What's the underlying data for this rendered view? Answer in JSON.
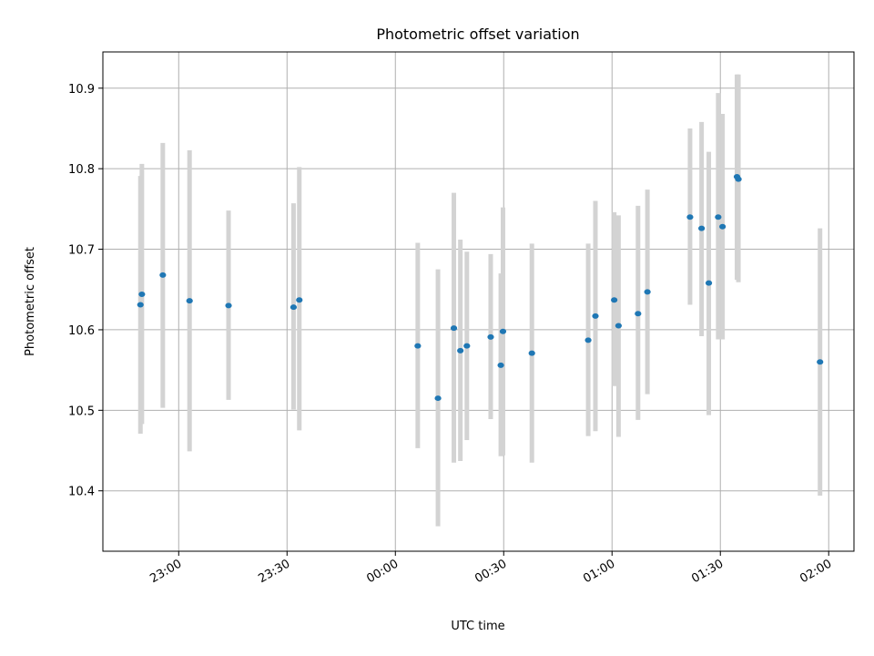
{
  "chart_data": {
    "type": "scatter",
    "title": "Photometric offset variation",
    "xlabel": "UTC time",
    "ylabel": "Photometric offset",
    "xlim": [
      "2000-01-01T22:39:00",
      "2000-01-02T02:07:00"
    ],
    "ylim": [
      10.325,
      10.945
    ],
    "grid": true,
    "x_ticks": [
      "23:00",
      "23:30",
      "00:00",
      "00:30",
      "01:00",
      "01:30",
      "02:00"
    ],
    "x_tick_times": [
      "2000-01-01T23:00:00",
      "2000-01-01T23:30:00",
      "2000-01-02T00:00:00",
      "2000-01-02T00:30:00",
      "2000-01-02T01:00:00",
      "2000-01-02T01:30:00",
      "2000-01-02T02:00:00"
    ],
    "y_ticks": [
      10.4,
      10.5,
      10.6,
      10.7,
      10.8,
      10.9
    ],
    "y_tick_labels": [
      "10.4",
      "10.5",
      "10.6",
      "10.7",
      "10.8",
      "10.9"
    ],
    "marker_color": "#1f77b4",
    "errorbar_color": "#d3d3d3",
    "series": [
      {
        "points": [
          {
            "t": "2000-01-01T22:49:24",
            "y": 10.631,
            "lo": 10.471,
            "hi": 10.791
          },
          {
            "t": "2000-01-01T22:49:48",
            "y": 10.644,
            "lo": 10.483,
            "hi": 10.806
          },
          {
            "t": "2000-01-01T22:55:36",
            "y": 10.668,
            "lo": 10.503,
            "hi": 10.832
          },
          {
            "t": "2000-01-01T23:03:00",
            "y": 10.636,
            "lo": 10.449,
            "hi": 10.823
          },
          {
            "t": "2000-01-01T23:13:48",
            "y": 10.63,
            "lo": 10.513,
            "hi": 10.748
          },
          {
            "t": "2000-01-01T23:31:48",
            "y": 10.628,
            "lo": 10.501,
            "hi": 10.757
          },
          {
            "t": "2000-01-01T23:33:24",
            "y": 10.637,
            "lo": 10.475,
            "hi": 10.802
          },
          {
            "t": "2000-01-02T00:06:12",
            "y": 10.58,
            "lo": 10.453,
            "hi": 10.708
          },
          {
            "t": "2000-01-02T00:11:48",
            "y": 10.515,
            "lo": 10.356,
            "hi": 10.675
          },
          {
            "t": "2000-01-02T00:16:12",
            "y": 10.602,
            "lo": 10.435,
            "hi": 10.77
          },
          {
            "t": "2000-01-02T00:18:00",
            "y": 10.574,
            "lo": 10.437,
            "hi": 10.712
          },
          {
            "t": "2000-01-02T00:19:48",
            "y": 10.58,
            "lo": 10.463,
            "hi": 10.697
          },
          {
            "t": "2000-01-02T00:26:24",
            "y": 10.591,
            "lo": 10.489,
            "hi": 10.694
          },
          {
            "t": "2000-01-02T00:29:12",
            "y": 10.556,
            "lo": 10.443,
            "hi": 10.67
          },
          {
            "t": "2000-01-02T00:29:48",
            "y": 10.598,
            "lo": 10.444,
            "hi": 10.752
          },
          {
            "t": "2000-01-02T00:37:48",
            "y": 10.571,
            "lo": 10.435,
            "hi": 10.707
          },
          {
            "t": "2000-01-02T00:53:24",
            "y": 10.587,
            "lo": 10.468,
            "hi": 10.707
          },
          {
            "t": "2000-01-02T00:55:24",
            "y": 10.617,
            "lo": 10.474,
            "hi": 10.76
          },
          {
            "t": "2000-01-02T01:00:36",
            "y": 10.637,
            "lo": 10.53,
            "hi": 10.746
          },
          {
            "t": "2000-01-02T01:01:48",
            "y": 10.605,
            "lo": 10.467,
            "hi": 10.742
          },
          {
            "t": "2000-01-02T01:07:12",
            "y": 10.62,
            "lo": 10.488,
            "hi": 10.754
          },
          {
            "t": "2000-01-02T01:09:48",
            "y": 10.647,
            "lo": 10.52,
            "hi": 10.774
          },
          {
            "t": "2000-01-02T01:21:36",
            "y": 10.74,
            "lo": 10.631,
            "hi": 10.85
          },
          {
            "t": "2000-01-02T01:24:48",
            "y": 10.726,
            "lo": 10.592,
            "hi": 10.858
          },
          {
            "t": "2000-01-02T01:26:48",
            "y": 10.658,
            "lo": 10.494,
            "hi": 10.821
          },
          {
            "t": "2000-01-02T01:29:24",
            "y": 10.74,
            "lo": 10.588,
            "hi": 10.894
          },
          {
            "t": "2000-01-02T01:30:36",
            "y": 10.728,
            "lo": 10.588,
            "hi": 10.868
          },
          {
            "t": "2000-01-02T01:34:36",
            "y": 10.79,
            "lo": 10.662,
            "hi": 10.917
          },
          {
            "t": "2000-01-02T01:35:00",
            "y": 10.787,
            "lo": 10.659,
            "hi": 10.917
          },
          {
            "t": "2000-01-02T01:57:36",
            "y": 10.56,
            "lo": 10.394,
            "hi": 10.726
          }
        ]
      }
    ]
  }
}
